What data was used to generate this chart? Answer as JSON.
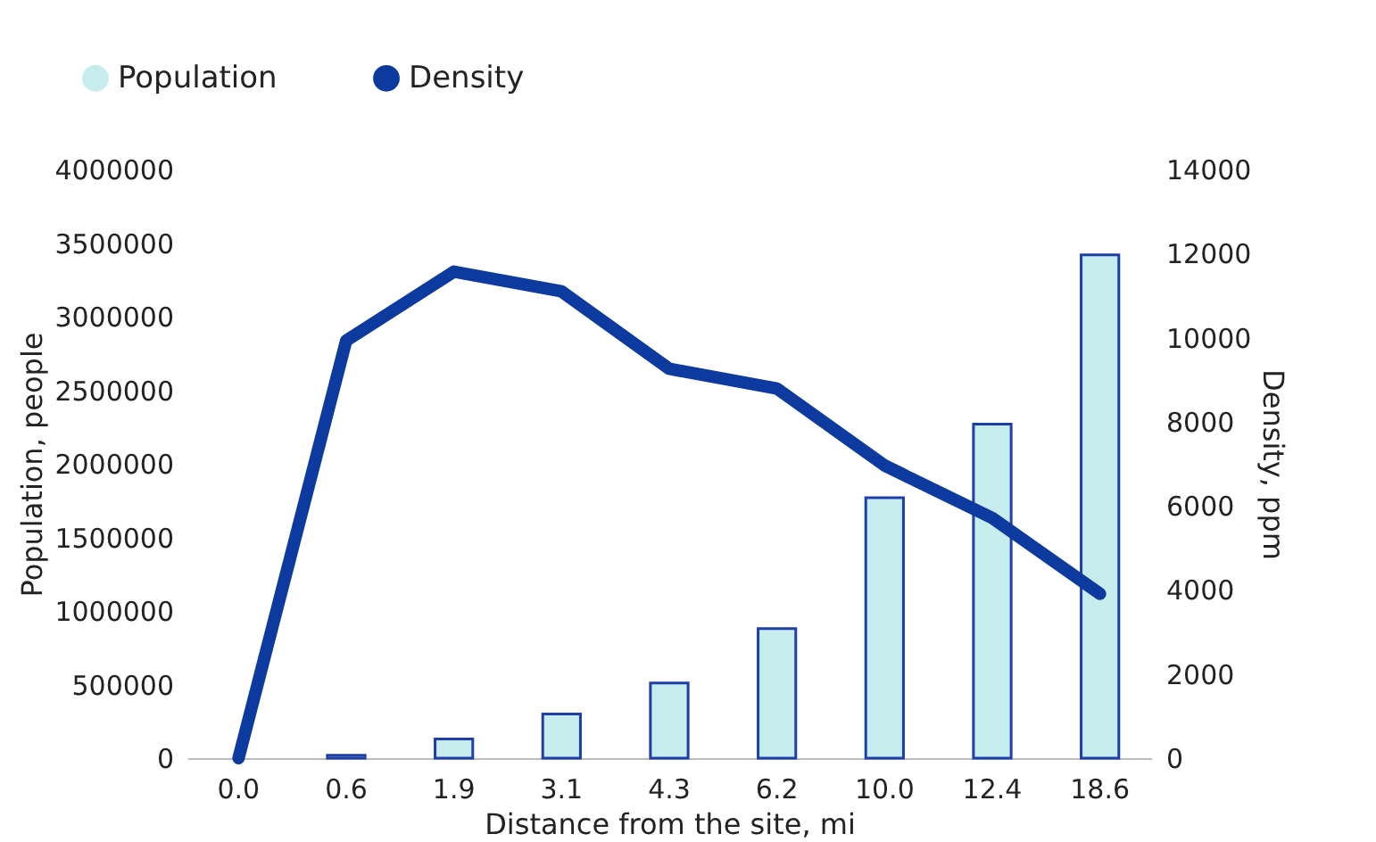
{
  "chart_data": {
    "type": "bar",
    "xlabel": "Distance from the site, mi",
    "ylabel": "Population, people",
    "y2label": "Density, ppm",
    "categories": [
      "0.0",
      "0.6",
      "1.9",
      "3.1",
      "4.3",
      "6.2",
      "10.0",
      "12.4",
      "18.6"
    ],
    "series": [
      {
        "name": "Population",
        "color": "#c6ecee",
        "values": [
          null,
          20000,
          130000,
          300000,
          510000,
          880000,
          1770000,
          2270000,
          3420000
        ]
      },
      {
        "name": "Density",
        "type": "line",
        "axis": "y2",
        "color": "#0d3a9e",
        "values": [
          0,
          9930,
          11570,
          11100,
          9260,
          8790,
          6960,
          5710,
          3910
        ]
      }
    ],
    "ylim": [
      0,
      4000000
    ],
    "yticks": [
      0,
      500000,
      1000000,
      1500000,
      2000000,
      2500000,
      3000000,
      3500000,
      4000000
    ],
    "y2lim": [
      0,
      14000
    ],
    "y2ticks": [
      0,
      2000,
      4000,
      6000,
      8000,
      10000,
      12000,
      14000
    ],
    "grid": false,
    "legend": "top left"
  }
}
